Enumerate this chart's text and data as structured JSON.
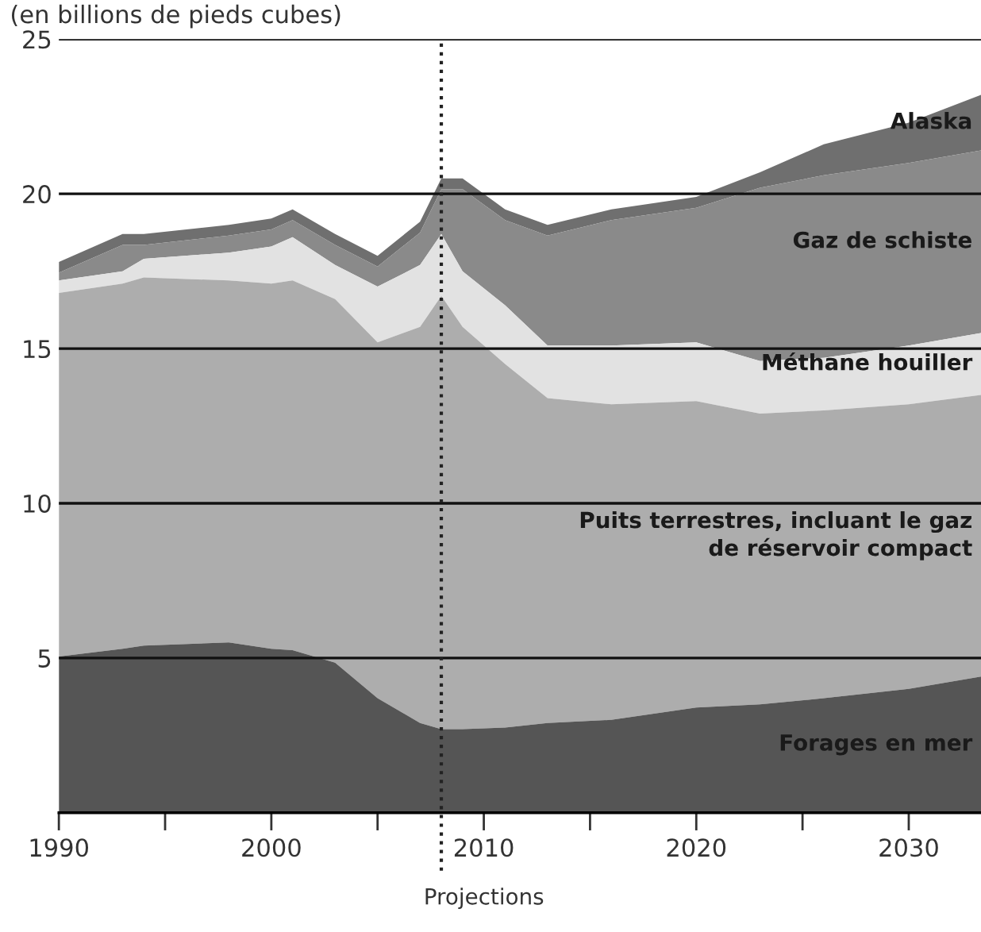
{
  "chart_data": {
    "type": "area",
    "stacked": true,
    "title": "(en billions de pieds cubes)",
    "x": [
      1990,
      1993,
      1994,
      1998,
      2000,
      2001,
      2003,
      2005,
      2007,
      2008,
      2009,
      2011,
      2013,
      2016,
      2020,
      2023,
      2026,
      2030,
      2033.4
    ],
    "series": [
      {
        "name": "Forages en mer",
        "color": "#555555",
        "values": [
          5.05,
          5.3,
          5.4,
          5.5,
          5.3,
          5.25,
          4.85,
          3.7,
          2.9,
          2.7,
          2.7,
          2.75,
          2.9,
          3.0,
          3.4,
          3.5,
          3.7,
          4.0,
          4.4
        ]
      },
      {
        "name": "Puits terrestres, incluant le gaz\nde réservoir compact",
        "color": "#adadad",
        "values": [
          11.75,
          11.8,
          11.9,
          11.7,
          11.8,
          11.95,
          11.75,
          11.5,
          12.8,
          14.0,
          13.0,
          11.75,
          10.5,
          10.2,
          9.9,
          9.4,
          9.3,
          9.2,
          9.1
        ]
      },
      {
        "name": "Méthane houiller",
        "color": "#e2e2e2",
        "values": [
          0.4,
          0.4,
          0.6,
          0.9,
          1.2,
          1.4,
          1.1,
          1.8,
          2.0,
          2.0,
          1.8,
          1.9,
          1.7,
          1.9,
          1.9,
          1.7,
          1.7,
          1.9,
          2.0
        ]
      },
      {
        "name": "Gaz de schiste",
        "color": "#8a8a8a",
        "values": [
          0.25,
          0.85,
          0.45,
          0.55,
          0.55,
          0.55,
          0.65,
          0.65,
          1.05,
          1.45,
          2.65,
          2.75,
          3.55,
          4.05,
          4.35,
          5.6,
          5.9,
          5.9,
          5.9
        ]
      },
      {
        "name": "Alaska",
        "color": "#6f6f6f",
        "values": [
          0.35,
          0.35,
          0.35,
          0.35,
          0.35,
          0.35,
          0.35,
          0.35,
          0.35,
          0.35,
          0.35,
          0.35,
          0.35,
          0.35,
          0.35,
          0.5,
          1.0,
          1.3,
          1.8
        ]
      }
    ],
    "xlim": [
      1990,
      2033.4
    ],
    "ylim": [
      0,
      25
    ],
    "xticks": [
      1990,
      {
        "value": 1995,
        "label": null
      },
      2000,
      {
        "value": 2005,
        "label": null
      },
      2010,
      {
        "value": 2015,
        "label": null
      },
      2020,
      {
        "value": 2025,
        "label": null
      },
      2030
    ],
    "yticks": [
      5,
      10,
      15,
      20,
      25
    ],
    "grid": "y",
    "legend": false,
    "ref_lines": [
      {
        "axis": "x",
        "value": 2008,
        "label": "Projections",
        "color": "#222222",
        "line_style": "dotted"
      }
    ]
  }
}
